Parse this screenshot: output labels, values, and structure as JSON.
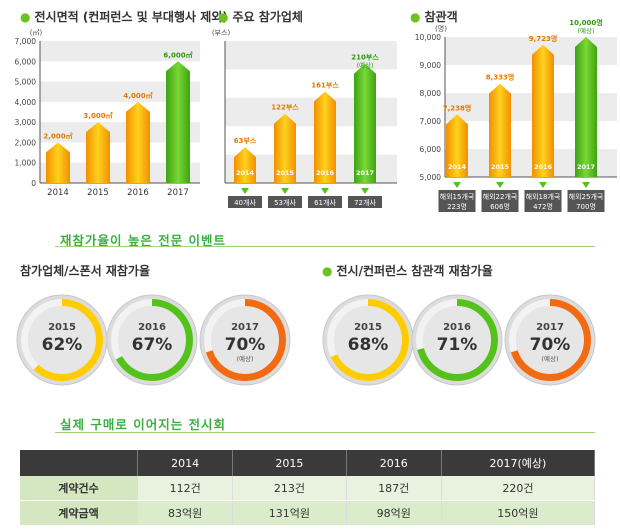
{
  "colors": {
    "orange": "#f7a60c",
    "yellow": "#ffd21e",
    "green": "#55c21b",
    "accent_green": "#3ab040",
    "gray_band": "#ececec"
  },
  "chart_data": [
    {
      "type": "bar",
      "title": "전시면적 (컨퍼런스 및 부대행사 제외)",
      "unit": "(㎡)",
      "categories": [
        "2014",
        "2015",
        "2016",
        "2017"
      ],
      "values": [
        2000,
        3000,
        4000,
        6000
      ],
      "labels": [
        "2,000㎡",
        "3,000㎡",
        "4,000㎡",
        "6,000㎡"
      ],
      "ylim": [
        0,
        7000
      ],
      "yticks": [
        "0",
        "1,000",
        "2,000",
        "3,000",
        "4,000",
        "5,000",
        "6,000",
        "7,000"
      ],
      "highlight_last": true
    },
    {
      "type": "bar",
      "title": "주요 참가업체",
      "unit": "(부스)",
      "categories": [
        "2014",
        "2015",
        "2016",
        "2017"
      ],
      "values": [
        63,
        122,
        161,
        210
      ],
      "labels": [
        "63부스",
        "122부스",
        "161부스",
        "210부스"
      ],
      "label_note": [
        "",
        "",
        "",
        "(예상)"
      ],
      "ylim": [
        0,
        250
      ],
      "sub_labels": [
        "40개사",
        "53개사",
        "61개사",
        "72개사"
      ],
      "highlight_last": true
    },
    {
      "type": "bar",
      "title": "참관객",
      "unit": "(명)",
      "categories": [
        "2014",
        "2015",
        "2016",
        "2017"
      ],
      "values": [
        7238,
        8333,
        9723,
        10000
      ],
      "labels": [
        "7,238명",
        "8,333명",
        "9,723명",
        "10,000명(예상)"
      ],
      "ylim": [
        5000,
        10000
      ],
      "yticks": [
        "5,000",
        "6,000",
        "7,000",
        "8,000",
        "9,000",
        "10,000"
      ],
      "sub_labels": [
        [
          "해외15개국",
          "223명"
        ],
        [
          "해외22개국",
          "606명"
        ],
        [
          "해외18개국",
          "472명"
        ],
        [
          "해외25개국",
          "700명"
        ]
      ],
      "highlight_last": true
    }
  ],
  "rebooking": {
    "section_title": "재참가율이 높은 전문 이벤트",
    "groups": [
      {
        "title": "참가업체/스폰서 재참가율",
        "items": [
          {
            "year": "2015",
            "value": 62,
            "label": "62%",
            "note": "",
            "color": "#ffcc00"
          },
          {
            "year": "2016",
            "value": 67,
            "label": "67%",
            "note": "",
            "color": "#55c21b"
          },
          {
            "year": "2017",
            "value": 70,
            "label": "70%",
            "note": "(예상)",
            "color": "#f26a12"
          }
        ]
      },
      {
        "title": "전시/컨퍼런스 참관객 재참가율",
        "items": [
          {
            "year": "2015",
            "value": 68,
            "label": "68%",
            "note": "",
            "color": "#ffcc00"
          },
          {
            "year": "2016",
            "value": 71,
            "label": "71%",
            "note": "",
            "color": "#55c21b"
          },
          {
            "year": "2017",
            "value": 70,
            "label": "70%",
            "note": "(예상)",
            "color": "#f26a12"
          }
        ]
      }
    ]
  },
  "deals": {
    "section_title": "실제 구매로 이어지는 전시회",
    "headers": [
      "",
      "2014",
      "2015",
      "2016",
      "2017(예상)"
    ],
    "rows": [
      [
        "계약건수",
        "112건",
        "213건",
        "187건",
        "220건"
      ],
      [
        "계약금액",
        "83억원",
        "131억원",
        "98억원",
        "150억원"
      ]
    ]
  }
}
